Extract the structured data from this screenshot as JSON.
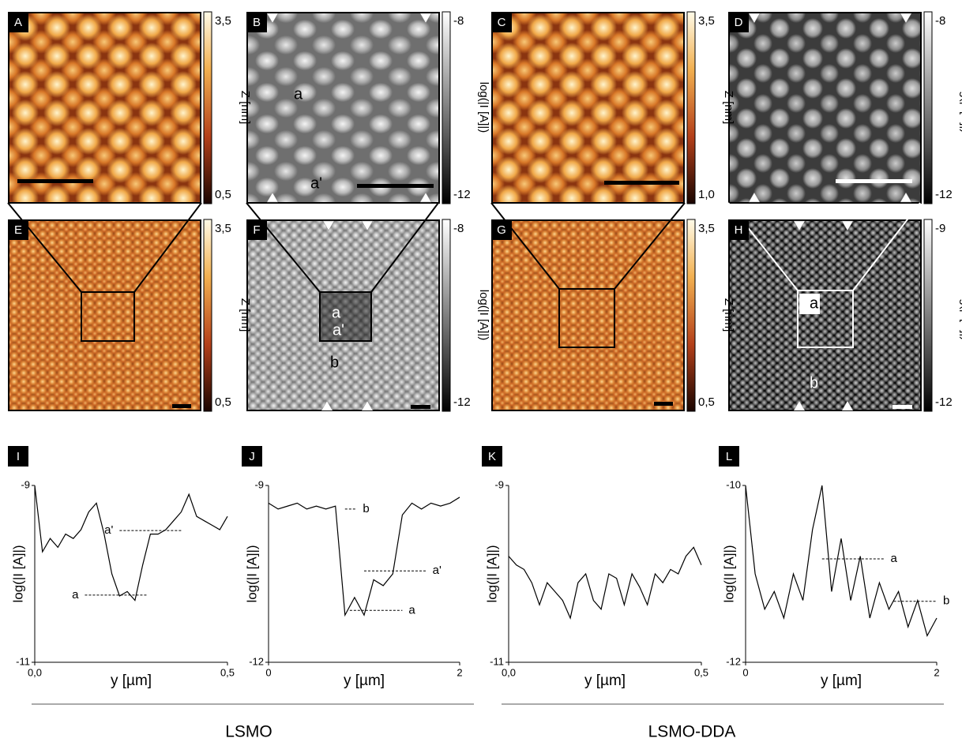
{
  "panels": [
    {
      "label": "A",
      "colorbar": {
        "top": "3,5",
        "bottom": "0,5",
        "label": "Z [nm]"
      }
    },
    {
      "label": "B",
      "colorbar": {
        "top": "-8",
        "bottom": "-12",
        "label": "log(|I [A]|)"
      },
      "annotations": [
        "a",
        "a'"
      ]
    },
    {
      "label": "C",
      "colorbar": {
        "top": "3,5",
        "bottom": "1,0",
        "label": "Z [nm]"
      }
    },
    {
      "label": "D",
      "colorbar": {
        "top": "-8",
        "bottom": "-12",
        "label": "log(|I [A]|)"
      }
    },
    {
      "label": "E",
      "colorbar": {
        "top": "3,5",
        "bottom": "0,5",
        "label": "Z [nm]"
      }
    },
    {
      "label": "F",
      "colorbar": {
        "top": "-8",
        "bottom": "-12",
        "label": "log(|I [A]|)"
      },
      "annotations": [
        "a",
        "a'",
        "b"
      ]
    },
    {
      "label": "G",
      "colorbar": {
        "top": "3,5",
        "bottom": "0,5",
        "label": "Z [nm]"
      }
    },
    {
      "label": "H",
      "colorbar": {
        "top": "-9",
        "bottom": "-12",
        "label": "log(|I [A]|)"
      },
      "annotations": [
        "a",
        "b"
      ]
    }
  ],
  "chart_data": [
    {
      "type": "line",
      "panel": "I",
      "xlabel": "y [µm]",
      "ylabel": "log(|I [A]|)",
      "xlim": [
        0,
        0.5
      ],
      "xticks": [
        {
          "value": 0,
          "label": "0,0"
        },
        {
          "value": 0.5,
          "label": "0,5"
        }
      ],
      "ylim": [
        -11,
        -9
      ],
      "yticks": [
        -11,
        -9
      ],
      "x": [
        0,
        0.02,
        0.04,
        0.06,
        0.08,
        0.1,
        0.12,
        0.14,
        0.16,
        0.18,
        0.2,
        0.22,
        0.24,
        0.26,
        0.28,
        0.3,
        0.32,
        0.34,
        0.36,
        0.38,
        0.4,
        0.42,
        0.44,
        0.46,
        0.48,
        0.5
      ],
      "series": [
        {
          "color": "#000000",
          "values": [
            -9.0,
            -9.75,
            -9.6,
            -9.7,
            -9.55,
            -9.6,
            -9.5,
            -9.3,
            -9.2,
            -9.55,
            -10.0,
            -10.25,
            -10.2,
            -10.3,
            -9.9,
            -9.55,
            -9.55,
            -9.5,
            -9.4,
            -9.3,
            -9.1,
            -9.35,
            -9.4,
            -9.45,
            -9.5,
            -9.35
          ]
        }
      ],
      "annotations": [
        {
          "label": "a'",
          "y": -9.51,
          "x": [
            0.22,
            0.38
          ]
        },
        {
          "label": "a",
          "y": -10.24,
          "x": [
            0.13,
            0.29
          ]
        }
      ]
    },
    {
      "type": "line",
      "panel": "J",
      "xlabel": "y [µm]",
      "ylabel": "log(|I [A]|)",
      "xlim": [
        0,
        2
      ],
      "xticks": [
        0,
        2
      ],
      "ylim": [
        -12,
        -9
      ],
      "yticks": [
        -12,
        -9
      ],
      "x": [
        0,
        0.1,
        0.2,
        0.3,
        0.4,
        0.5,
        0.6,
        0.7,
        0.8,
        0.9,
        1.0,
        1.1,
        1.2,
        1.3,
        1.4,
        1.5,
        1.6,
        1.7,
        1.8,
        1.9,
        2.0
      ],
      "series": [
        {
          "color": "#000000",
          "values": [
            -9.3,
            -9.4,
            -9.35,
            -9.3,
            -9.4,
            -9.35,
            -9.4,
            -9.35,
            -11.2,
            -10.9,
            -11.2,
            -10.6,
            -10.7,
            -10.5,
            -9.5,
            -9.3,
            -9.4,
            -9.3,
            -9.35,
            -9.3,
            -9.2
          ]
        }
      ],
      "annotations": [
        {
          "label": "b",
          "y": -9.4,
          "x": [
            0.8,
            0.92
          ]
        },
        {
          "label": "a'",
          "y": -10.45,
          "x": [
            1.0,
            1.65
          ]
        },
        {
          "label": "a",
          "y": -11.12,
          "x": [
            0.85,
            1.4
          ]
        }
      ]
    },
    {
      "type": "line",
      "panel": "K",
      "xlabel": "y [µm]",
      "ylabel": "log(|I [A]|)",
      "xlim": [
        0,
        0.5
      ],
      "xticks": [
        {
          "value": 0,
          "label": "0,0"
        },
        {
          "value": 0.5,
          "label": "0,5"
        }
      ],
      "ylim": [
        -11,
        -9
      ],
      "yticks": [
        -11,
        -9
      ],
      "x": [
        0,
        0.02,
        0.04,
        0.06,
        0.08,
        0.1,
        0.12,
        0.14,
        0.16,
        0.18,
        0.2,
        0.22,
        0.24,
        0.26,
        0.28,
        0.3,
        0.32,
        0.34,
        0.36,
        0.38,
        0.4,
        0.42,
        0.44,
        0.46,
        0.48,
        0.5
      ],
      "series": [
        {
          "color": "#000000",
          "values": [
            -9.8,
            -9.9,
            -9.95,
            -10.1,
            -10.35,
            -10.1,
            -10.2,
            -10.3,
            -10.5,
            -10.1,
            -10.0,
            -10.3,
            -10.4,
            -10.0,
            -10.05,
            -10.35,
            -10.0,
            -10.15,
            -10.35,
            -10.0,
            -10.1,
            -9.95,
            -10.0,
            -9.8,
            -9.7,
            -9.9
          ]
        }
      ],
      "annotations": []
    },
    {
      "type": "line",
      "panel": "L",
      "xlabel": "y [µm]",
      "ylabel": "log(|I [A]|)",
      "xlim": [
        0,
        2
      ],
      "xticks": [
        0,
        2
      ],
      "ylim": [
        -12,
        -10
      ],
      "yticks": [
        -12,
        -10
      ],
      "x": [
        0,
        0.1,
        0.2,
        0.3,
        0.4,
        0.5,
        0.6,
        0.7,
        0.8,
        0.9,
        1.0,
        1.1,
        1.2,
        1.3,
        1.4,
        1.5,
        1.6,
        1.7,
        1.8,
        1.9,
        2.0
      ],
      "series": [
        {
          "color": "#000000",
          "values": [
            -10.0,
            -11.0,
            -11.4,
            -11.2,
            -11.5,
            -11.0,
            -11.3,
            -10.5,
            -10.0,
            -11.2,
            -10.6,
            -11.3,
            -10.8,
            -11.5,
            -11.1,
            -11.4,
            -11.2,
            -11.6,
            -11.3,
            -11.7,
            -11.5
          ]
        }
      ],
      "annotations": [
        {
          "label": "a",
          "y": -10.83,
          "x": [
            0.8,
            1.45
          ]
        },
        {
          "label": "b",
          "y": -11.31,
          "x": [
            1.55,
            2.0
          ]
        }
      ]
    }
  ],
  "groups": [
    "LSMO",
    "LSMO-DDA"
  ]
}
